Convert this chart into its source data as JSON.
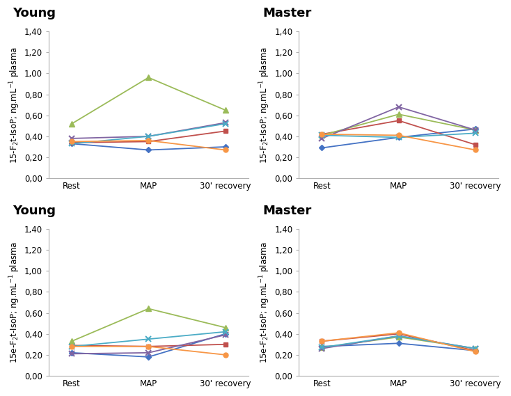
{
  "panels": [
    {
      "title": "Young",
      "ylabel": "15-F$_2$t-IsoP; ng.mL$^{-1}$ plasma",
      "series": [
        {
          "color": "#4472c4",
          "marker": "D",
          "values": [
            0.33,
            0.27,
            0.3
          ]
        },
        {
          "color": "#c0504d",
          "marker": "s",
          "values": [
            0.34,
            0.35,
            0.45
          ]
        },
        {
          "color": "#9bbb59",
          "marker": "^",
          "values": [
            0.52,
            0.96,
            0.65
          ]
        },
        {
          "color": "#8064a2",
          "marker": "x",
          "values": [
            0.38,
            0.4,
            0.53
          ]
        },
        {
          "color": "#4bacc6",
          "marker": "x",
          "values": [
            0.33,
            0.4,
            0.52
          ]
        },
        {
          "color": "#f79646",
          "marker": "o",
          "values": [
            0.35,
            0.36,
            0.27
          ]
        }
      ]
    },
    {
      "title": "Master",
      "ylabel": "15-F$_2$t-IsoP; ng.mL$^{-1}$ plasma",
      "series": [
        {
          "color": "#4472c4",
          "marker": "D",
          "values": [
            0.29,
            0.39,
            0.47
          ]
        },
        {
          "color": "#c0504d",
          "marker": "s",
          "values": [
            0.42,
            0.55,
            0.32
          ]
        },
        {
          "color": "#9bbb59",
          "marker": "^",
          "values": [
            0.41,
            0.61,
            0.46
          ]
        },
        {
          "color": "#8064a2",
          "marker": "x",
          "values": [
            0.38,
            0.68,
            0.46
          ]
        },
        {
          "color": "#4bacc6",
          "marker": "x",
          "values": [
            0.41,
            0.39,
            0.43
          ]
        },
        {
          "color": "#f79646",
          "marker": "o",
          "values": [
            0.42,
            0.41,
            0.27
          ]
        }
      ]
    },
    {
      "title": "Young",
      "ylabel": "15e-F$_2$t-IsoP; ng.mL$^{-1}$ plasma",
      "series": [
        {
          "color": "#4472c4",
          "marker": "D",
          "values": [
            0.22,
            0.18,
            0.4
          ]
        },
        {
          "color": "#c0504d",
          "marker": "s",
          "values": [
            0.29,
            0.28,
            0.3
          ]
        },
        {
          "color": "#9bbb59",
          "marker": "^",
          "values": [
            0.33,
            0.64,
            0.46
          ]
        },
        {
          "color": "#8064a2",
          "marker": "x",
          "values": [
            0.21,
            0.22,
            0.39
          ]
        },
        {
          "color": "#4bacc6",
          "marker": "x",
          "values": [
            0.28,
            0.35,
            0.42
          ]
        },
        {
          "color": "#f79646",
          "marker": "o",
          "values": [
            0.28,
            0.28,
            0.2
          ]
        }
      ]
    },
    {
      "title": "Master",
      "ylabel": "15e-F$_2$t-IsoP; ng.mL$^{-1}$ plasma",
      "series": [
        {
          "color": "#4472c4",
          "marker": "D",
          "values": [
            0.28,
            0.31,
            0.24
          ]
        },
        {
          "color": "#c0504d",
          "marker": "s",
          "values": [
            0.33,
            0.4,
            0.24
          ]
        },
        {
          "color": "#9bbb59",
          "marker": "^",
          "values": [
            0.27,
            0.37,
            0.26
          ]
        },
        {
          "color": "#8064a2",
          "marker": "x",
          "values": [
            0.26,
            0.38,
            0.26
          ]
        },
        {
          "color": "#4bacc6",
          "marker": "x",
          "values": [
            0.27,
            0.38,
            0.26
          ]
        },
        {
          "color": "#f79646",
          "marker": "o",
          "values": [
            0.33,
            0.41,
            0.23
          ]
        }
      ]
    }
  ],
  "x_labels": [
    "Rest",
    "MAP",
    "30' recovery"
  ],
  "ylim": [
    0.0,
    1.4
  ],
  "yticks": [
    0.0,
    0.2,
    0.4,
    0.6,
    0.8,
    1.0,
    1.2,
    1.4
  ],
  "ytick_labels": [
    "0,00",
    "0,20",
    "0,40",
    "0,60",
    "0,80",
    "1,00",
    "1,20",
    "1,40"
  ],
  "background_color": "#ffffff",
  "title_fontsize": 13,
  "label_fontsize": 8.5,
  "tick_fontsize": 8.5
}
